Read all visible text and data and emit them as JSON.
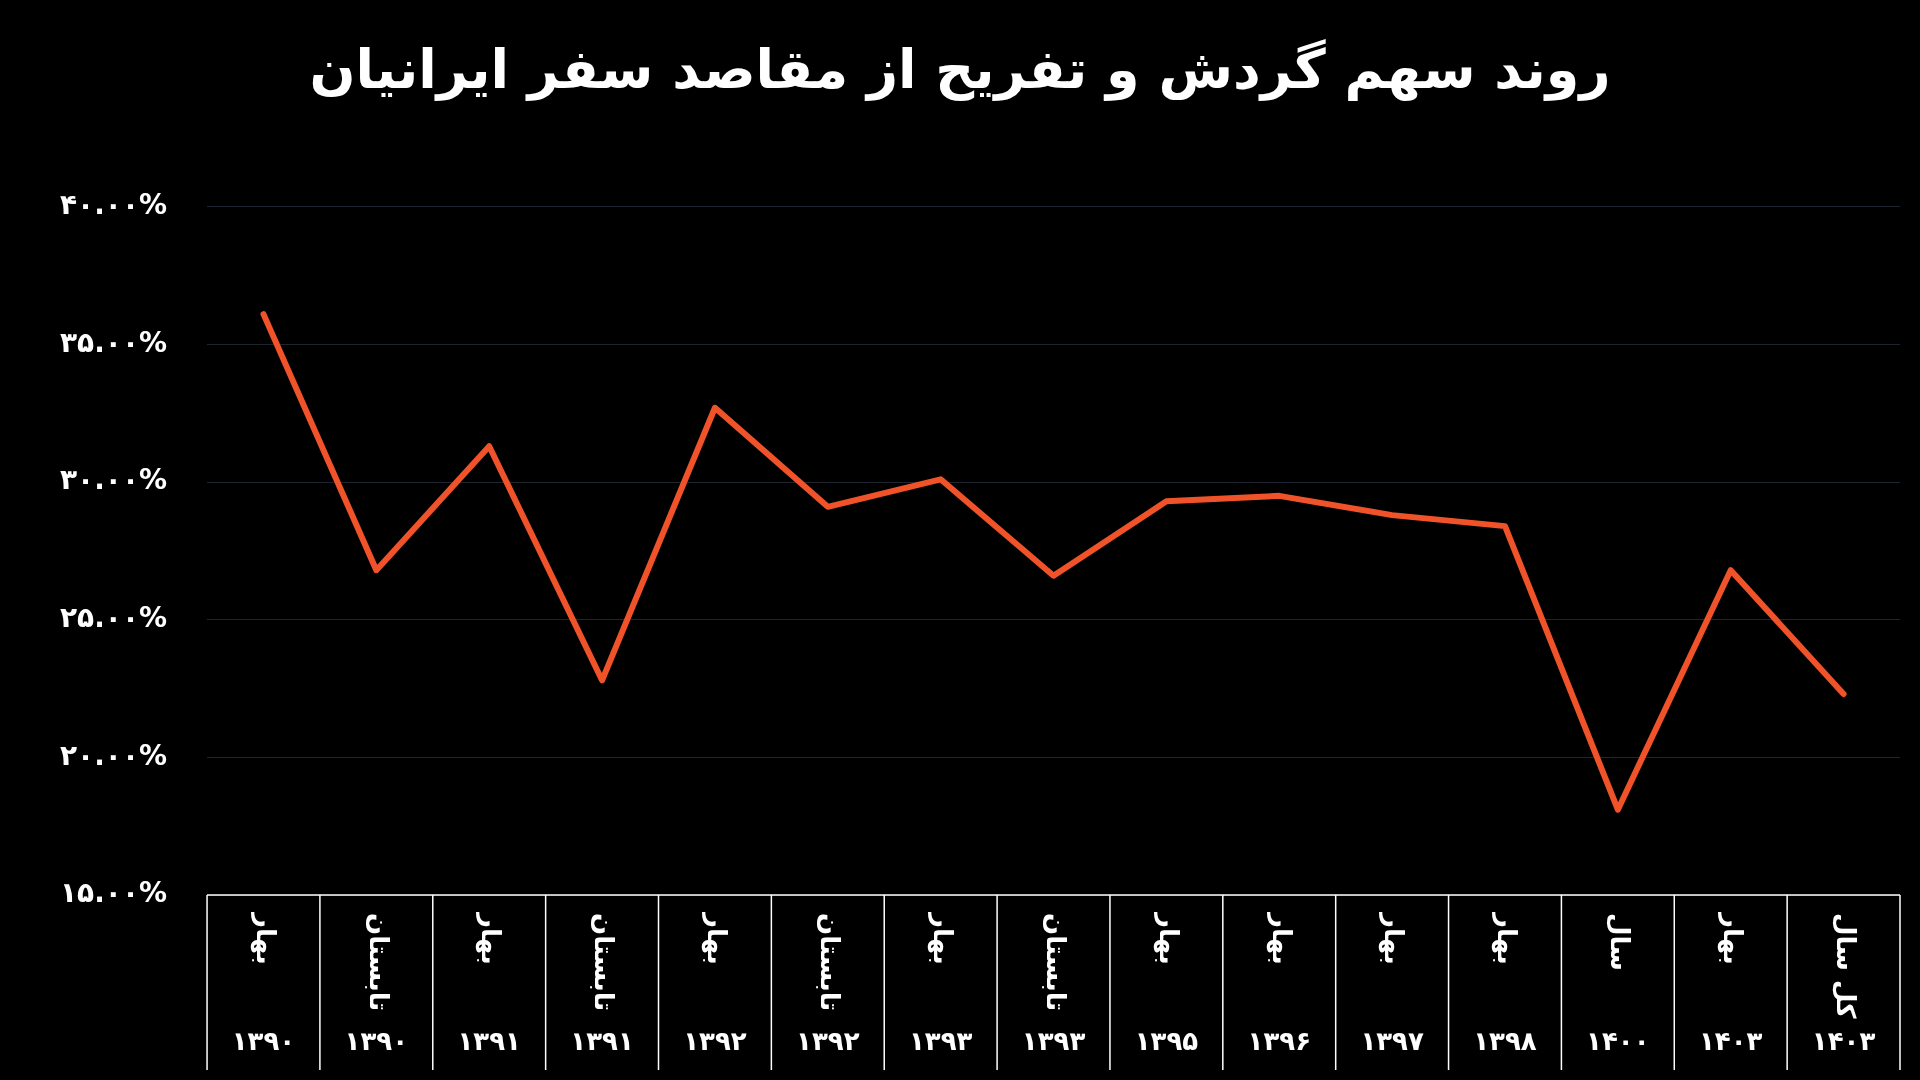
{
  "chart_data": {
    "type": "line",
    "title": "روند سهم گردش و تفریح از مقاصد سفر ایرانیان",
    "categories": [
      "بهار\n۱۳۹۰",
      "تابستان\n۱۳۹۰",
      "بهار\n۱۳۹۱",
      "تابستان\n۱۳۹۱",
      "بهار\n۱۳۹۲",
      "تابستان\n۱۳۹۲",
      "بهار\n۱۳۹۳",
      "تابستان\n۱۳۹۳",
      "بهار\n۱۳۹۵",
      "بهار\n۱۳۹۶",
      "بهار\n۱۳۹۷",
      "بهار\n۱۳۹۸",
      "سال\n۱۴۰۰",
      "بهار\n۱۴۰۳",
      "کل سال\n۱۴۰۳"
    ],
    "series": [
      {
        "color": "#f0532a",
        "values": [
          36.1,
          26.8,
          31.3,
          22.8,
          32.7,
          29.1,
          30.1,
          26.6,
          29.3,
          29.5,
          28.8,
          28.4,
          18.1,
          26.8,
          22.3
        ]
      }
    ],
    "ylim": [
      15,
      40
    ],
    "yticks": [
      {
        "value": 15,
        "label": "۱۵.۰۰%"
      },
      {
        "value": 20,
        "label": "۲۰.۰۰%"
      },
      {
        "value": 25,
        "label": "۲۵.۰۰%"
      },
      {
        "value": 30,
        "label": "۳۰.۰۰%"
      },
      {
        "value": 35,
        "label": "۳۵.۰۰%"
      },
      {
        "value": 40,
        "label": "۴۰.۰۰%"
      }
    ],
    "grid": "y",
    "legend": false,
    "marker": "none",
    "line_style": "solid"
  }
}
